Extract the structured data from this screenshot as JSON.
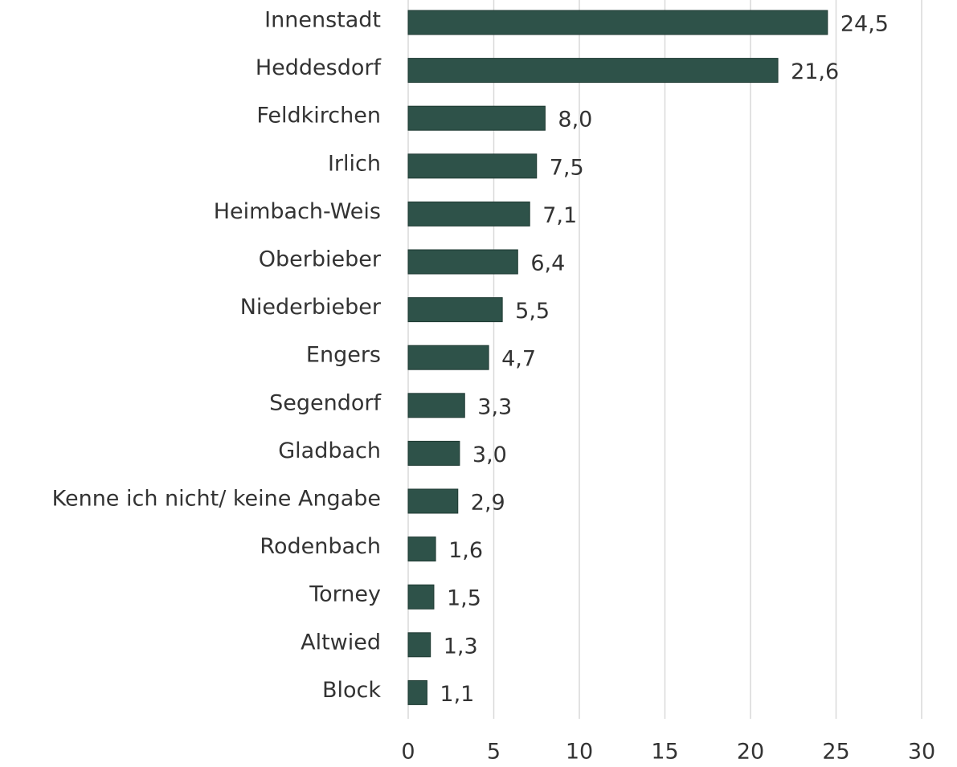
{
  "chart_data": {
    "type": "bar",
    "orientation": "horizontal",
    "categories": [
      "Innenstadt",
      "Heddesdorf",
      "Feldkirchen",
      "Irlich",
      "Heimbach-Weis",
      "Oberbieber",
      "Niederbieber",
      "Engers",
      "Segendorf",
      "Gladbach",
      "Kenne ich nicht/ keine Angabe",
      "Rodenbach",
      "Torney",
      "Altwied",
      "Block"
    ],
    "values": [
      24.5,
      21.6,
      8.0,
      7.5,
      7.1,
      6.4,
      5.5,
      4.7,
      3.3,
      3.0,
      2.9,
      1.6,
      1.5,
      1.3,
      1.1
    ],
    "value_labels": [
      "24,5",
      "21,6",
      "8,0",
      "7,5",
      "7,1",
      "6,4",
      "5,5",
      "4,7",
      "3,3",
      "3,0",
      "2,9",
      "1,6",
      "1,5",
      "1,3",
      "1,1"
    ],
    "color": "#2e5249",
    "xlim": [
      0,
      30
    ],
    "xticks": [
      0,
      5,
      10,
      15,
      20,
      25,
      30
    ],
    "grid": true
  }
}
